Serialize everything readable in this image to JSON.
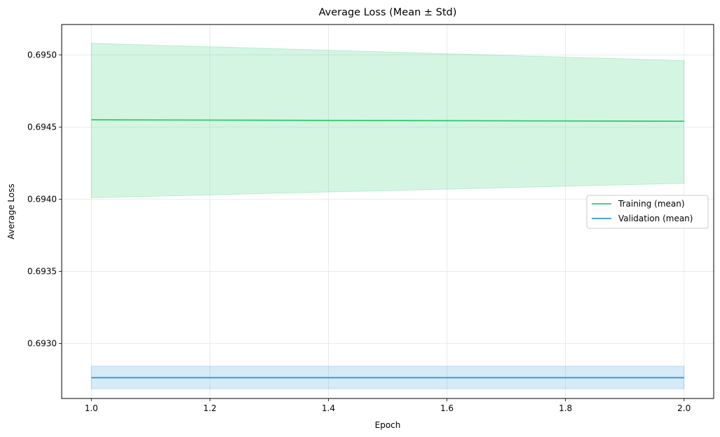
{
  "chart_data": {
    "type": "line",
    "title": "Average Loss (Mean ± Std)",
    "xlabel": "Epoch",
    "ylabel": "Average Loss",
    "xlim": [
      0.95,
      2.05
    ],
    "ylim": [
      0.69262,
      0.69521
    ],
    "x_ticks": [
      1.0,
      1.2,
      1.4,
      1.6,
      1.8,
      2.0
    ],
    "x_tick_labels": [
      "1.0",
      "1.2",
      "1.4",
      "1.6",
      "1.8",
      "2.0"
    ],
    "y_ticks": [
      0.693,
      0.6935,
      0.694,
      0.6945,
      0.695
    ],
    "y_tick_labels": [
      "0.6930",
      "0.6935",
      "0.6940",
      "0.6945",
      "0.6950"
    ],
    "grid": true,
    "legend_position": "center-right",
    "series": [
      {
        "name": "Training (mean)",
        "color": "#2ecc71",
        "x": [
          1.0,
          2.0
        ],
        "mean": [
          0.69455,
          0.69454
        ],
        "upper": [
          0.69508,
          0.69496
        ],
        "lower": [
          0.69401,
          0.69411
        ]
      },
      {
        "name": "Validation (mean)",
        "color": "#3498db",
        "x": [
          1.0,
          2.0
        ],
        "mean": [
          0.692764,
          0.692764
        ],
        "upper": [
          0.692844,
          0.692844
        ],
        "lower": [
          0.692687,
          0.692687
        ]
      }
    ]
  }
}
